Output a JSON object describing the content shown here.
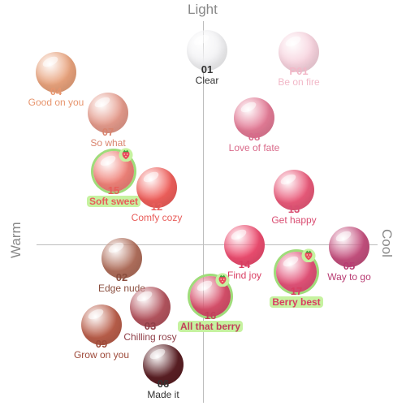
{
  "axes": {
    "top": "Light",
    "left": "Warm",
    "right": "Cool"
  },
  "products": [
    {
      "number": "01",
      "name": "Clear",
      "color": "#f2f2f4",
      "text_color": "#333333"
    },
    {
      "number": "P01",
      "name": "Be on fire",
      "color": "#f7d3de",
      "text_color": "#f2b8c8"
    },
    {
      "number": "04",
      "name": "Good on you",
      "color": "#e8a27c",
      "text_color": "#e7956e"
    },
    {
      "number": "07",
      "name": "So what",
      "color": "#e49a8b",
      "text_color": "#d9836d"
    },
    {
      "number": "08",
      "name": "Love of fate",
      "color": "#e37b96",
      "text_color": "#d96a8a"
    },
    {
      "number": "15",
      "name": "Soft sweet",
      "color": "#ef8279",
      "text_color": "#e85d5a",
      "highlight": true,
      "strawberry": true
    },
    {
      "number": "12",
      "name": "Comfy cozy",
      "color": "#ef5f5b",
      "text_color": "#e85d5a"
    },
    {
      "number": "13",
      "name": "Get happy",
      "color": "#e95a7a",
      "text_color": "#d94d72"
    },
    {
      "number": "14",
      "name": "Find joy",
      "color": "#ec4d70",
      "text_color": "#d93d62"
    },
    {
      "number": "05",
      "name": "Way to go",
      "color": "#c4507e",
      "text_color": "#b83b72"
    },
    {
      "number": "17",
      "name": "Berry best",
      "color": "#e25278",
      "text_color": "#d93d62",
      "highlight": true,
      "strawberry": true
    },
    {
      "number": "02",
      "name": "Edge nude",
      "color": "#b06f5c",
      "text_color": "#8a4e3e"
    },
    {
      "number": "03",
      "name": "Chilling rosy",
      "color": "#b3545e",
      "text_color": "#8f3f48"
    },
    {
      "number": "16",
      "name": "All that berry",
      "color": "#d7506b",
      "text_color": "#c2405b",
      "highlight": true,
      "strawberry": true
    },
    {
      "number": "09",
      "name": "Grow on you",
      "color": "#b95e4a",
      "text_color": "#9e4a3a"
    },
    {
      "number": "06",
      "name": "Made it",
      "color": "#5a1f24",
      "text_color": "#333333"
    }
  ]
}
